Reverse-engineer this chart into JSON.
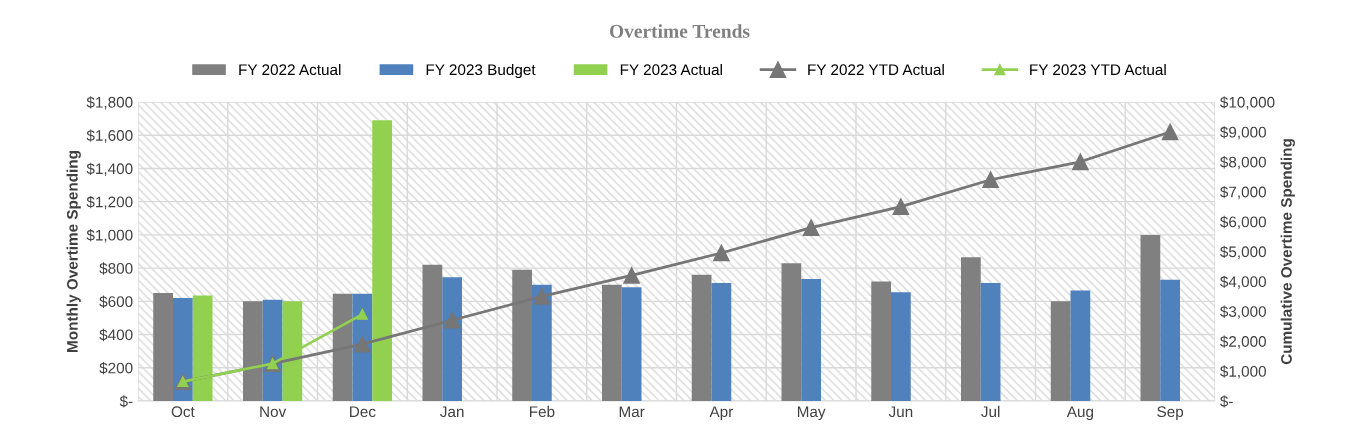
{
  "chart_data": {
    "type": "bar",
    "title": "Overtime Trends",
    "ylabel": "Monthly Overtime Spending",
    "y2label": "Cumulative Overtime Spending",
    "categories": [
      "Oct",
      "Nov",
      "Dec",
      "Jan",
      "Feb",
      "Mar",
      "Apr",
      "May",
      "Jun",
      "Jul",
      "Aug",
      "Sep"
    ],
    "series": [
      {
        "name": "FY 2022 Actual",
        "color": "#808080",
        "values": [
          650,
          600,
          645,
          820,
          790,
          700,
          760,
          830,
          720,
          865,
          600,
          1000
        ]
      },
      {
        "name": "FY 2023 Budget",
        "color": "#4f81bd",
        "values": [
          620,
          610,
          645,
          745,
          700,
          685,
          710,
          735,
          655,
          710,
          665,
          730
        ]
      },
      {
        "name": "FY 2023 Actual",
        "color": "#92d050",
        "values": [
          635,
          600,
          1690,
          null,
          null,
          null,
          null,
          null,
          null,
          null,
          null,
          null
        ]
      },
      {
        "name": "FY 2022 YTD Actual",
        "type": "line",
        "axis": "y2",
        "marker": "triangle",
        "color": "#767676",
        "values": [
          650,
          1250,
          1900,
          2700,
          3500,
          4200,
          4950,
          5800,
          6500,
          7400,
          8000,
          9000
        ]
      },
      {
        "name": "FY 2023 YTD Actual",
        "type": "line",
        "axis": "y2",
        "marker": "triangle",
        "color": "#92d050",
        "values": [
          650,
          1250,
          2900,
          null,
          null,
          null,
          null,
          null,
          null,
          null,
          null,
          null
        ]
      }
    ],
    "ylim": [
      0,
      1800
    ],
    "yticks": [
      {
        "value": 0,
        "label": "$-"
      },
      {
        "value": 200,
        "label": "$200"
      },
      {
        "value": 400,
        "label": "$400"
      },
      {
        "value": 600,
        "label": "$600"
      },
      {
        "value": 800,
        "label": "$800"
      },
      {
        "value": 1000,
        "label": "$1,000"
      },
      {
        "value": 1200,
        "label": "$1,200"
      },
      {
        "value": 1400,
        "label": "$1,400"
      },
      {
        "value": 1600,
        "label": "$1,600"
      },
      {
        "value": 1800,
        "label": "$1,800"
      }
    ],
    "y2lim": [
      0,
      10000
    ],
    "y2ticks": [
      {
        "value": 0,
        "label": "$-"
      },
      {
        "value": 1000,
        "label": "$1,000"
      },
      {
        "value": 2000,
        "label": "$2,000"
      },
      {
        "value": 3000,
        "label": "$3,000"
      },
      {
        "value": 4000,
        "label": "$4,000"
      },
      {
        "value": 5000,
        "label": "$5,000"
      },
      {
        "value": 6000,
        "label": "$6,000"
      },
      {
        "value": 7000,
        "label": "$7,000"
      },
      {
        "value": 8000,
        "label": "$8,000"
      },
      {
        "value": 9000,
        "label": "$9,000"
      },
      {
        "value": 10000,
        "label": "$10,000"
      }
    ],
    "grid": true,
    "legend": "top"
  }
}
